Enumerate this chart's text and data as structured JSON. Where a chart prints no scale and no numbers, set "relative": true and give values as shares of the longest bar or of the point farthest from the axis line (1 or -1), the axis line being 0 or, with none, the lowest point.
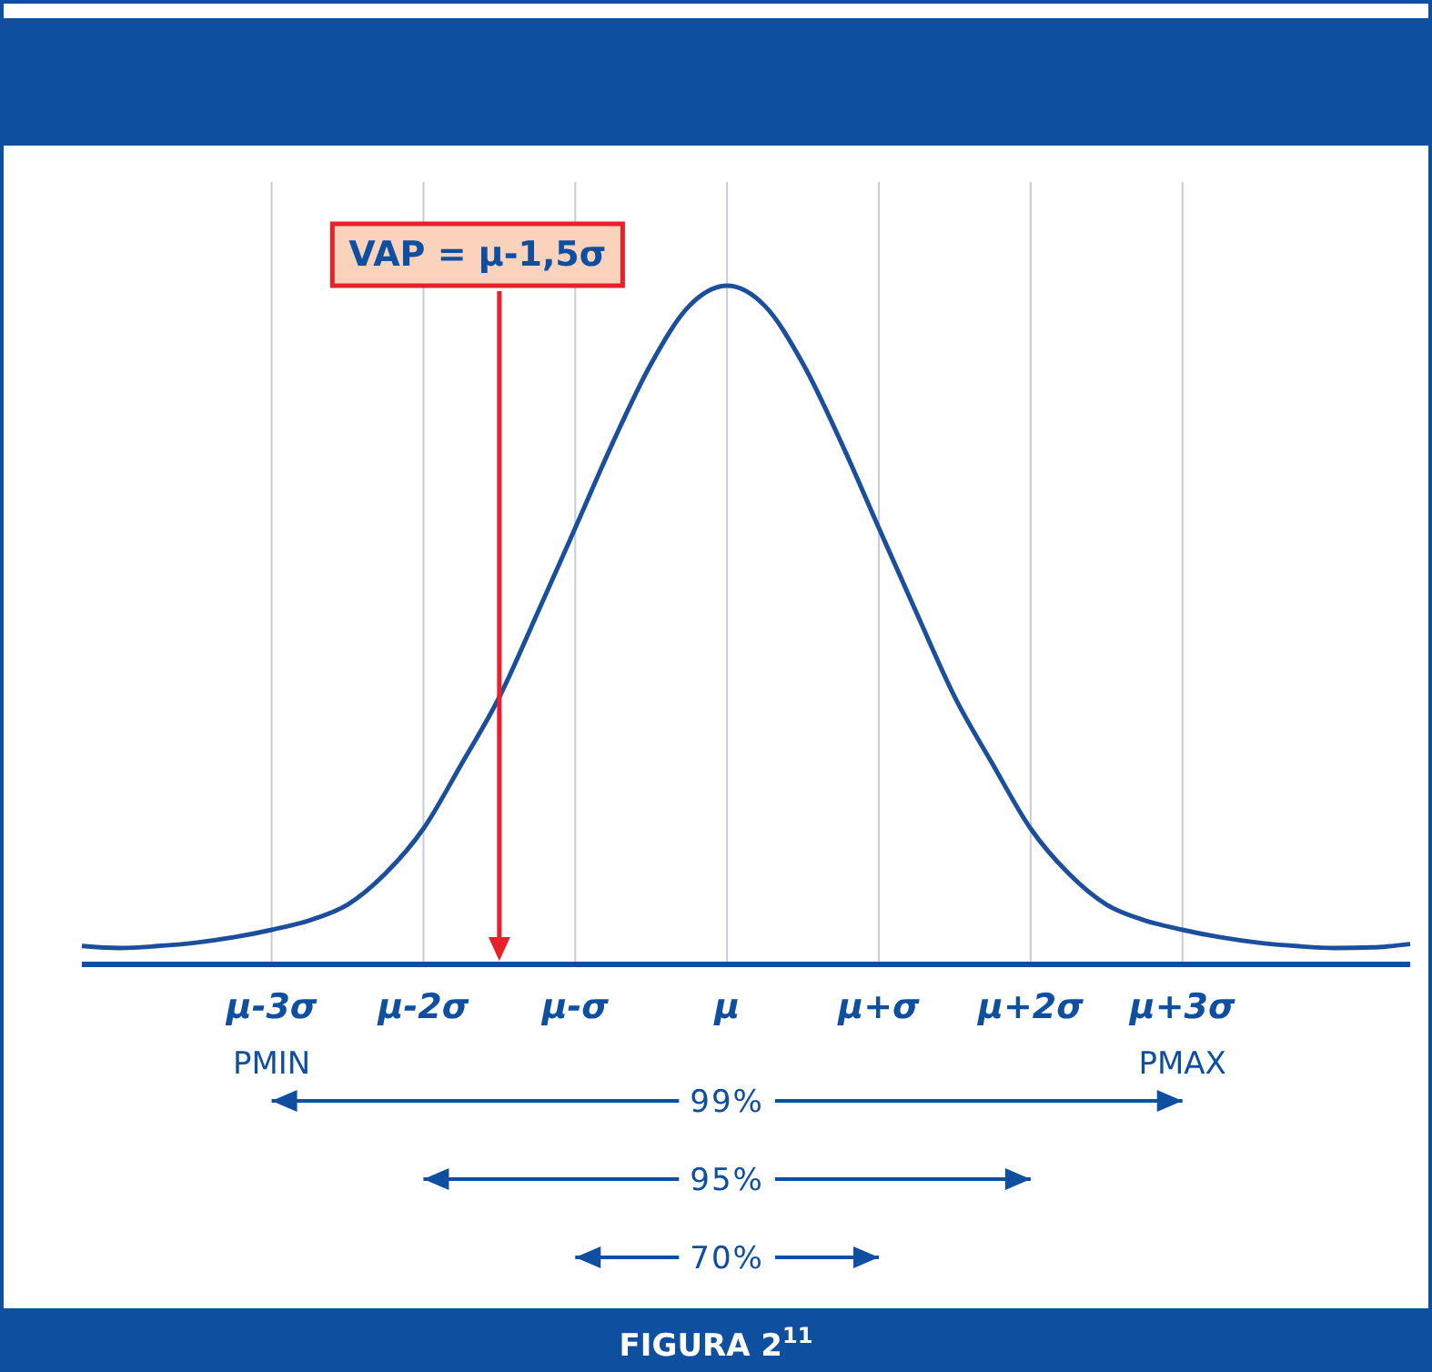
{
  "chart_data": {
    "type": "line",
    "relative": true,
    "grid": "x",
    "categories": [
      null,
      null,
      null,
      null,
      null,
      "μ-3σ",
      null,
      null,
      null,
      "μ-2σ",
      null,
      null,
      null,
      "μ-σ",
      null,
      null,
      null,
      "μ",
      null,
      null,
      null,
      "μ+σ",
      null,
      null,
      null,
      "μ+2σ",
      null,
      null,
      null,
      "μ+3σ",
      null,
      null,
      null,
      null,
      null,
      null
    ],
    "series": [
      {
        "color": "#1b4f9c",
        "values": [
          0.027,
          0.024,
          0.027,
          0.032,
          0.04,
          0.051,
          0.065,
          0.088,
          0.134,
          0.2,
          0.295,
          0.394,
          0.517,
          0.643,
          0.77,
          0.885,
          0.97,
          1,
          0.97,
          0.885,
          0.77,
          0.643,
          0.517,
          0.394,
          0.295,
          0.2,
          0.134,
          0.088,
          0.065,
          0.051,
          0.04,
          0.032,
          0.027,
          0.024,
          0.025,
          0.03
        ]
      }
    ],
    "annotations": [
      "VAP = μ-1,5σ",
      "PMIN",
      "PMAX",
      "99%",
      "95%",
      "70%",
      "FIGURA 2$^{11}$"
    ]
  }
}
